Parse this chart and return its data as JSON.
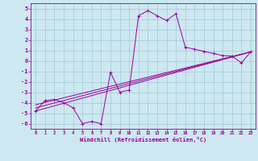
{
  "xlabel": "Windchill (Refroidissement éolien,°C)",
  "xlim": [
    -0.5,
    23.5
  ],
  "ylim": [
    -6.5,
    5.5
  ],
  "xticks": [
    0,
    1,
    2,
    3,
    4,
    5,
    6,
    7,
    8,
    9,
    10,
    11,
    12,
    13,
    14,
    15,
    16,
    17,
    18,
    19,
    20,
    21,
    22,
    23
  ],
  "yticks": [
    -6,
    -5,
    -4,
    -3,
    -2,
    -1,
    0,
    1,
    2,
    3,
    4,
    5
  ],
  "bg_color": "#cde8f0",
  "line_color": "#990099",
  "grid_color": "#a0c8d8",
  "main_line": [
    [
      0,
      -4.8
    ],
    [
      1,
      -3.8
    ],
    [
      2,
      -3.7
    ],
    [
      3,
      -4.0
    ],
    [
      4,
      -4.5
    ],
    [
      5,
      -6.0
    ],
    [
      6,
      -5.8
    ],
    [
      7,
      -6.0
    ],
    [
      8,
      -1.1
    ],
    [
      9,
      -3.0
    ],
    [
      10,
      -2.8
    ],
    [
      11,
      4.3
    ],
    [
      12,
      4.8
    ],
    [
      13,
      4.3
    ],
    [
      14,
      3.85
    ],
    [
      15,
      4.5
    ],
    [
      16,
      1.3
    ],
    [
      17,
      1.1
    ],
    [
      18,
      0.9
    ],
    [
      19,
      0.7
    ],
    [
      20,
      0.5
    ],
    [
      21,
      0.45
    ],
    [
      22,
      -0.2
    ],
    [
      23,
      0.85
    ]
  ],
  "trend_lines": [
    [
      [
        0,
        -4.8
      ],
      [
        23,
        0.85
      ]
    ],
    [
      [
        0,
        -4.5
      ],
      [
        23,
        0.85
      ]
    ],
    [
      [
        0,
        -4.2
      ],
      [
        23,
        0.85
      ]
    ]
  ]
}
